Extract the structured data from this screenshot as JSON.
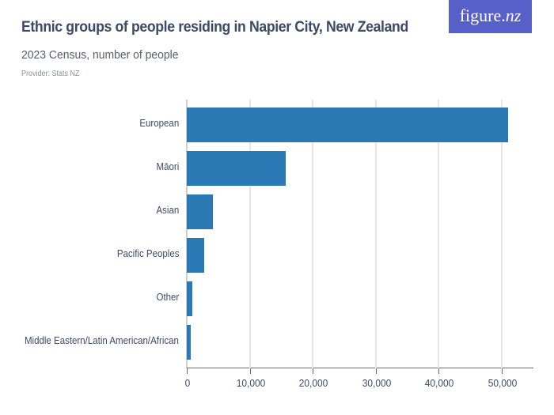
{
  "header": {
    "title": "Ethnic groups of people residing in Napier City, New Zealand",
    "subtitle": "2023 Census, number of people",
    "provider": "Provider: Stats NZ"
  },
  "logo": {
    "text_main": "figure.",
    "text_nz": "nz"
  },
  "colors": {
    "bar": "#2a79b5",
    "logo_bg": "#5760c8",
    "title": "#3b4a67"
  },
  "axis": {
    "ticks": [
      "0",
      "10,000",
      "20,000",
      "30,000",
      "40,000",
      "50,000"
    ]
  },
  "chart_data": {
    "type": "bar",
    "orientation": "horizontal",
    "title": "Ethnic groups of people residing in Napier City, New Zealand",
    "subtitle": "2023 Census, number of people",
    "source": "Provider: Stats NZ",
    "categories": [
      "European",
      "Māori",
      "Asian",
      "Pacific Peoples",
      "Other",
      "Middle Eastern/Latin American/African"
    ],
    "values": [
      51000,
      15650,
      4200,
      2730,
      840,
      630
    ],
    "xlabel": "",
    "ylabel": "",
    "xlim": [
      0,
      55000
    ],
    "xticks": [
      0,
      10000,
      20000,
      30000,
      40000,
      50000
    ],
    "grid": true,
    "legend": null
  }
}
